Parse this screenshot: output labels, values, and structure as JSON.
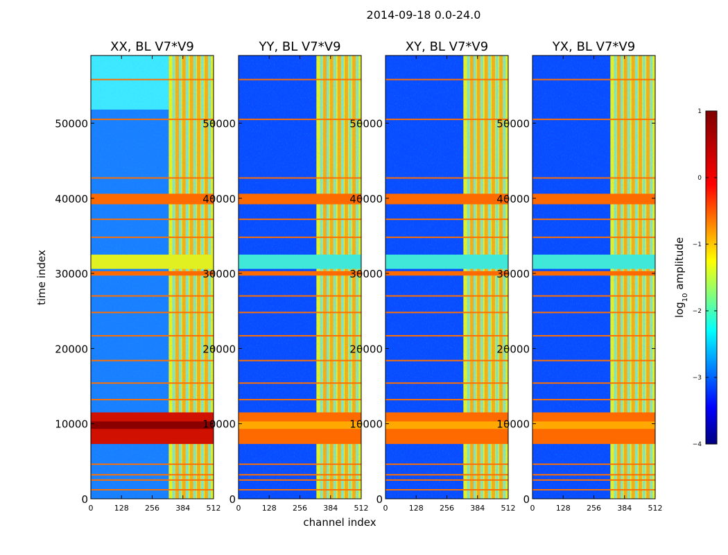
{
  "figure": {
    "suptitle": "2014-09-18 0.0-24.0",
    "xlabel": "channel index",
    "ylabel": "time index"
  },
  "chart_data": {
    "type": "heatmap",
    "x_range": [
      0,
      512
    ],
    "y_range": [
      0,
      59000
    ],
    "x_ticks": [
      0,
      128,
      256,
      384,
      512
    ],
    "y_ticks": [
      0,
      10000,
      20000,
      30000,
      40000,
      50000
    ],
    "panels": [
      {
        "title": "XX, BL V7*V9"
      },
      {
        "title": "YY, BL V7*V9"
      },
      {
        "title": "XY, BL V7*V9"
      },
      {
        "title": "YX, BL V7*V9"
      }
    ],
    "colorbar": {
      "label_prefix": "log",
      "label_sub": "10",
      "label_suffix": " amplitude",
      "range": [
        -4,
        1
      ],
      "ticks": [
        1,
        0,
        -1,
        -2,
        -3,
        -4
      ],
      "tick_labels": [
        "1",
        "0",
        "−1",
        "−2",
        "−3",
        "−4"
      ],
      "colormap": "jet",
      "colors": [
        "#00007f",
        "#0000ff",
        "#007fff",
        "#00ffff",
        "#7fff7f",
        "#ffff00",
        "#ff7f00",
        "#ff0000",
        "#7f0000"
      ]
    },
    "features": {
      "bright_channel_band": [
        325,
        512
      ],
      "flag_rows_orange": [
        1200,
        2500,
        3200,
        4600,
        13200,
        15400,
        18400,
        21700,
        24800,
        27000,
        29800,
        34800,
        37200,
        39500,
        42700,
        50500,
        55800
      ],
      "bright_time_band": [
        30600,
        32500
      ],
      "saturated_time_band": [
        7300,
        11500
      ]
    }
  }
}
